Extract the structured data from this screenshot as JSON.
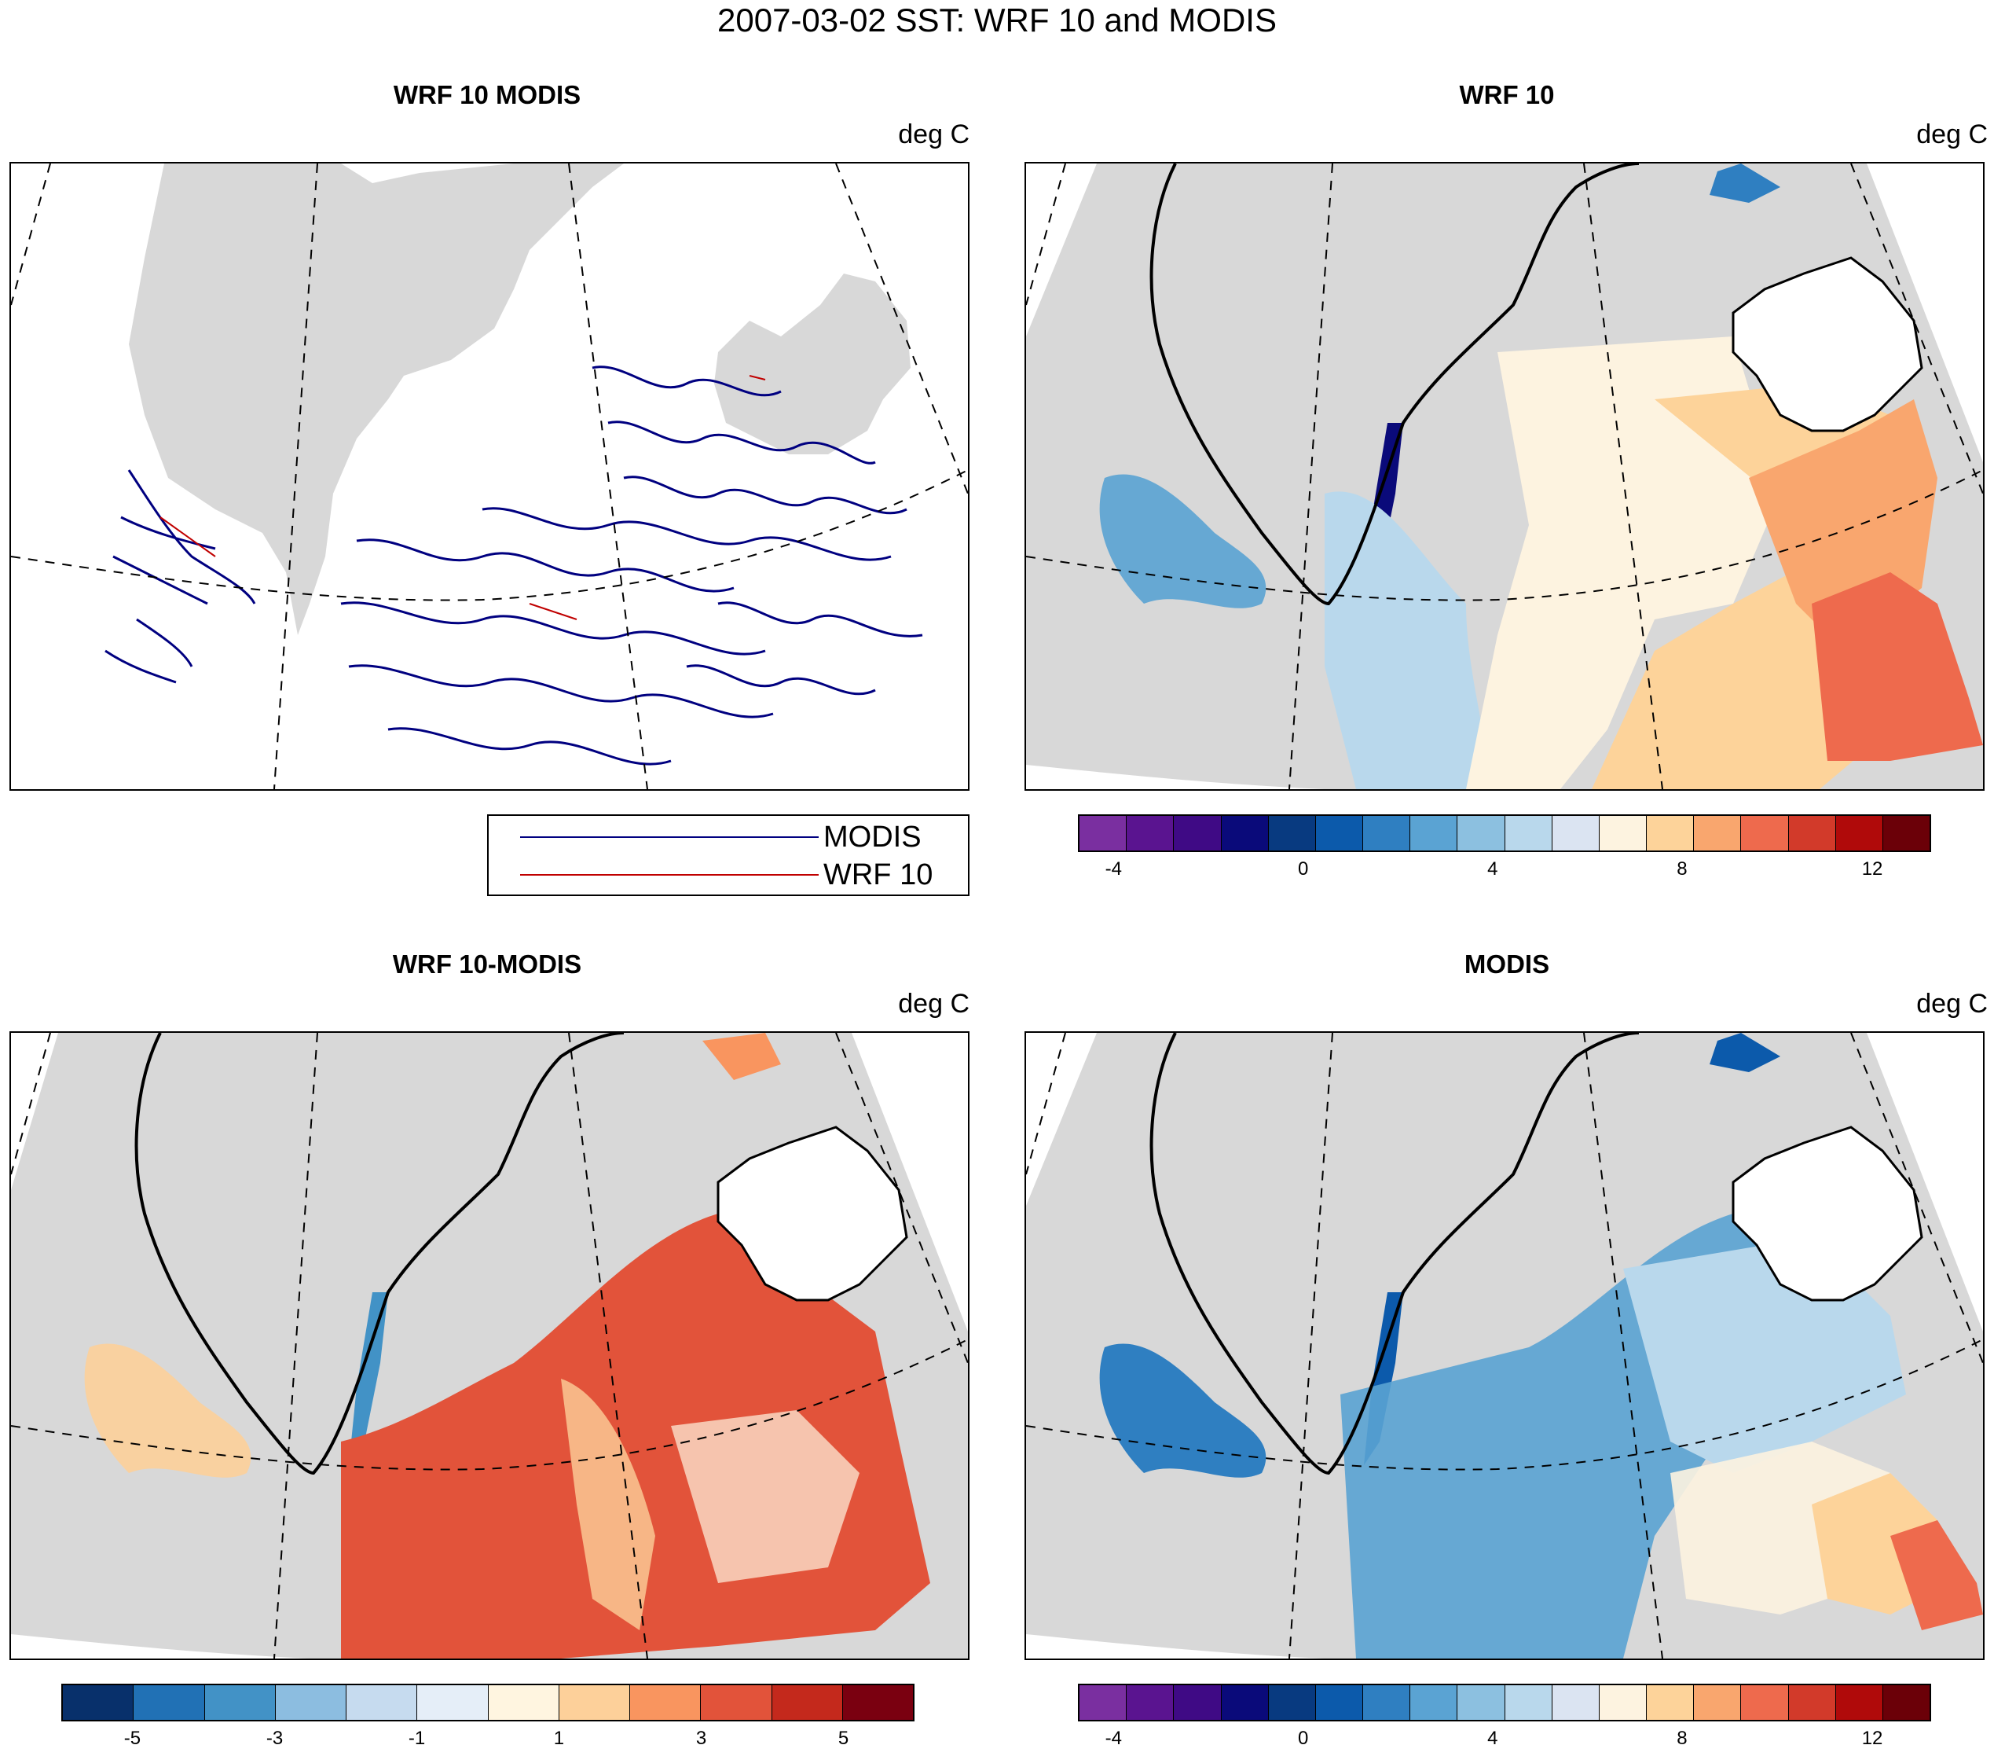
{
  "figure": {
    "title": "2007-03-02 SST: WRF 10 and MODIS"
  },
  "chart_data": [
    {
      "type": "heatmap",
      "title": "WRF 10 MODIS",
      "units": "deg C",
      "legend": {
        "placement": "bottom-right",
        "entries": [
          {
            "name": "MODIS",
            "color": "#000080"
          },
          {
            "name": "WRF 10",
            "color": "#c00000"
          }
        ]
      },
      "grid": true
    },
    {
      "type": "heatmap",
      "title": "WRF 10",
      "units": "deg C",
      "colorbar": {
        "ticks": [
          "-4",
          "0",
          "4",
          "8",
          "12"
        ],
        "colors": [
          "#7a2fa0",
          "#5a1490",
          "#3f0a85",
          "#0a0a7a",
          "#083a80",
          "#0c5aab",
          "#2f7fc1",
          "#5aa3d3",
          "#8cc0e0",
          "#b9d8ec",
          "#dbe4f2",
          "#fdf3e0",
          "#fdd39a",
          "#f9a66e",
          "#ee6a4d",
          "#d23a2a",
          "#b00a0a",
          "#6b0008"
        ]
      },
      "grid": true
    },
    {
      "type": "heatmap",
      "title": "WRF 10-MODIS",
      "units": "deg C",
      "colorbar": {
        "ticks": [
          "-5",
          "-3",
          "-1",
          "1",
          "3",
          "5"
        ],
        "colors": [
          "#08306b",
          "#2171b5",
          "#4292c6",
          "#8cbde0",
          "#c6dbef",
          "#e5eef8",
          "#fff5e0",
          "#fdd09a",
          "#f9955f",
          "#e2533a",
          "#c4291c",
          "#7a0010"
        ]
      },
      "grid": true
    },
    {
      "type": "heatmap",
      "title": "MODIS",
      "units": "deg C",
      "colorbar": {
        "ticks": [
          "-4",
          "0",
          "4",
          "8",
          "12"
        ],
        "colors": [
          "#7a2fa0",
          "#5a1490",
          "#3f0a85",
          "#0a0a7a",
          "#083a80",
          "#0c5aab",
          "#2f7fc1",
          "#5aa3d3",
          "#8cc0e0",
          "#b9d8ec",
          "#dbe4f2",
          "#fdf3e0",
          "#fdd39a",
          "#f9a66e",
          "#ee6a4d",
          "#d23a2a",
          "#b00a0a",
          "#6b0008"
        ]
      },
      "grid": true
    }
  ]
}
